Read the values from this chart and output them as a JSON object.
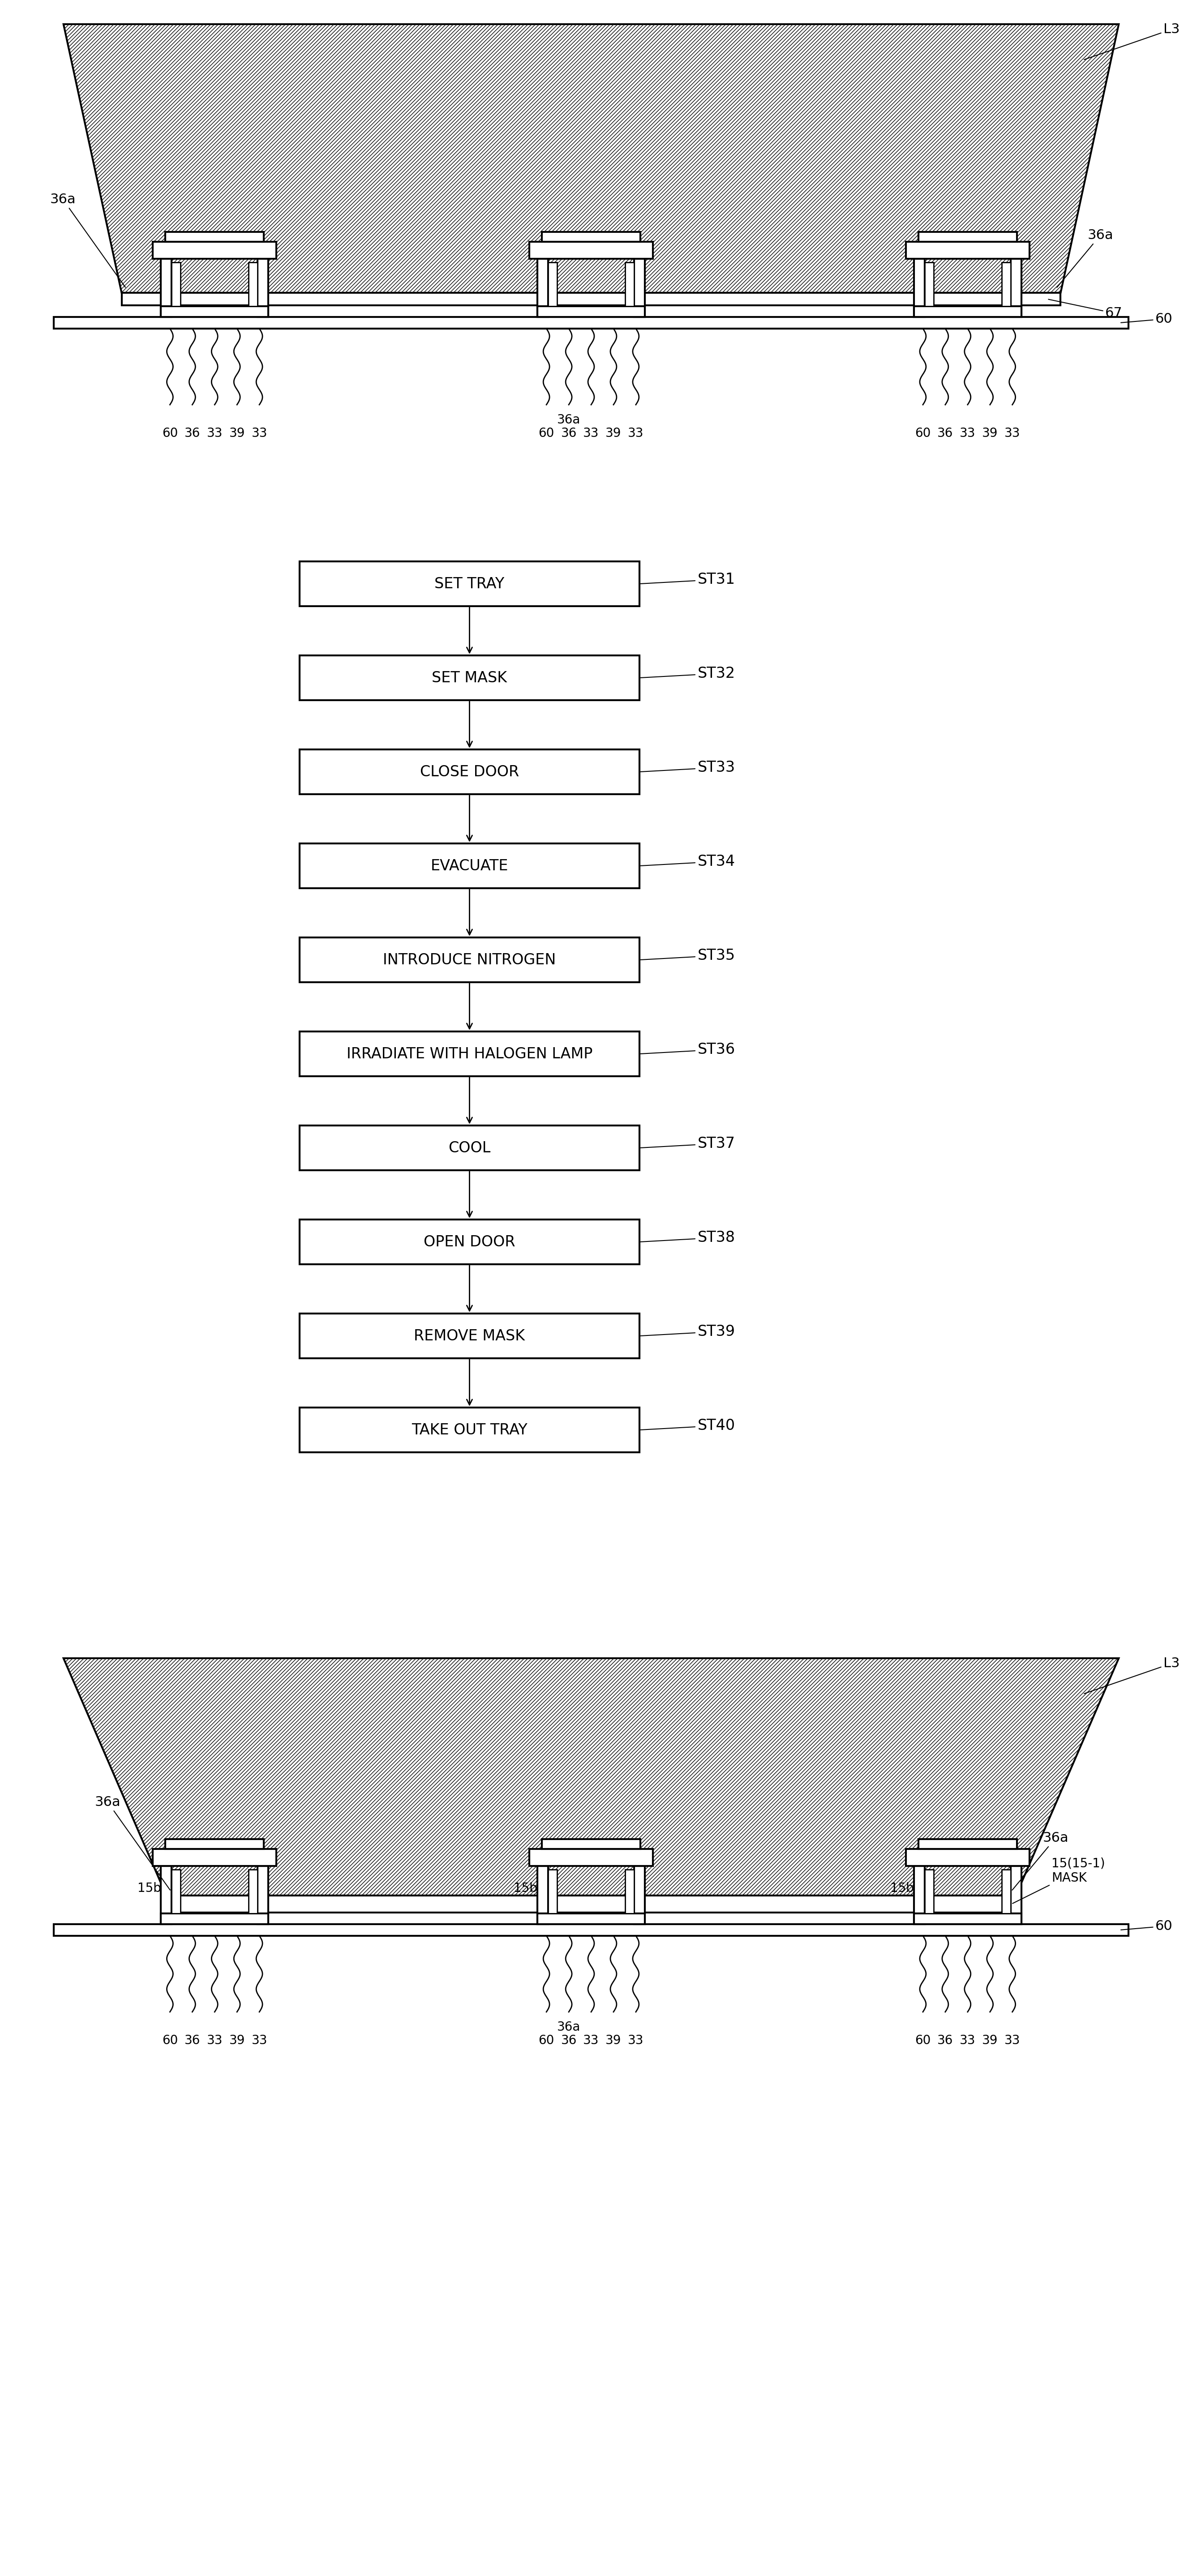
{
  "flowchart_steps": [
    {
      "label": "SET TRAY",
      "tag": "ST31"
    },
    {
      "label": "SET MASK",
      "tag": "ST32"
    },
    {
      "label": "CLOSE DOOR",
      "tag": "ST33"
    },
    {
      "label": "EVACUATE",
      "tag": "ST34"
    },
    {
      "label": "INTRODUCE NITROGEN",
      "tag": "ST35"
    },
    {
      "label": "IRRADIATE WITH HALOGEN LAMP",
      "tag": "ST36"
    },
    {
      "label": "COOL",
      "tag": "ST37"
    },
    {
      "label": "OPEN DOOR",
      "tag": "ST38"
    },
    {
      "label": "REMOVE MASK",
      "tag": "ST39"
    },
    {
      "label": "TAKE OUT TRAY",
      "tag": "ST40"
    }
  ],
  "diag1_bottom_labels": [
    "60",
    "36",
    "33",
    "39",
    "33",
    "60",
    "36",
    "33",
    "39",
    "33",
    "60",
    "36",
    "33",
    "39",
    "33"
  ],
  "diag2_bottom_labels": [
    "60",
    "36",
    "33",
    "39",
    "33",
    "60",
    "36",
    "33",
    "39",
    "33",
    "60",
    "36",
    "33",
    "39",
    "33"
  ],
  "colors": {
    "line_color": "#000000",
    "bg": "#ffffff"
  },
  "font_size_label": 22,
  "font_size_step": 24,
  "font_size_tag": 24,
  "font_size_bottom": 20
}
